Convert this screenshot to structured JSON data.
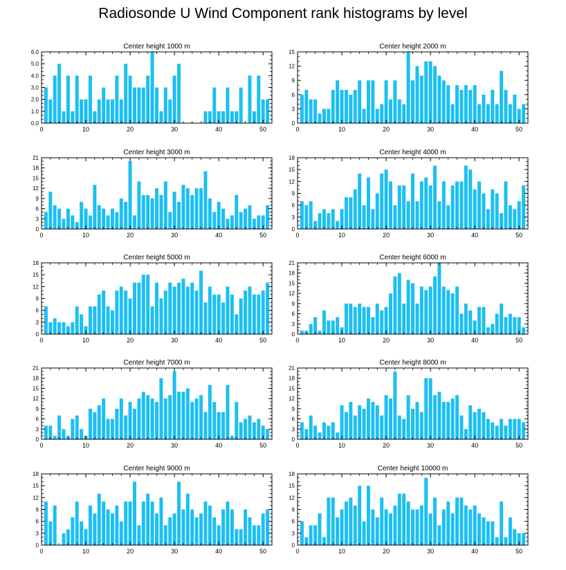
{
  "title": "Radiosonde U Wind Component rank histograms by level",
  "colors": {
    "bar": "#1cbff2",
    "axis": "#000000",
    "background": "#ffffff"
  },
  "chart_data": [
    {
      "type": "bar",
      "title": "Center height 1000 m",
      "xlim": [
        0,
        52
      ],
      "ylim": [
        0,
        6
      ],
      "yticks": [
        "0.0",
        "1.0",
        "2.0",
        "3.0",
        "4.0",
        "5.0",
        "6.0"
      ],
      "xticks": [
        0,
        10,
        20,
        30,
        40,
        50
      ],
      "x": [
        1,
        2,
        3,
        4,
        5,
        6,
        7,
        8,
        9,
        10,
        11,
        12,
        13,
        14,
        15,
        16,
        17,
        18,
        19,
        20,
        21,
        22,
        23,
        24,
        25,
        26,
        27,
        28,
        29,
        30,
        31,
        32,
        33,
        34,
        35,
        36,
        37,
        38,
        39,
        40,
        41,
        42,
        43,
        44,
        45,
        46,
        47,
        48,
        49,
        50,
        51
      ],
      "values": [
        3,
        2,
        4,
        5,
        1,
        4,
        1,
        4,
        2,
        2,
        4,
        1,
        2,
        3,
        2,
        2,
        4,
        2,
        5,
        4,
        3,
        3,
        3,
        4,
        6,
        3,
        1,
        3,
        2,
        4,
        5,
        0,
        0,
        0,
        0,
        0,
        1,
        1,
        3,
        1,
        1,
        3,
        1,
        1,
        3,
        0,
        4,
        1,
        4,
        2,
        2
      ]
    },
    {
      "type": "bar",
      "title": "Center height 2000 m",
      "xlim": [
        0,
        52
      ],
      "ylim": [
        0,
        15
      ],
      "yticks": [
        "0",
        "3",
        "6",
        "9",
        "12",
        "15"
      ],
      "xticks": [
        0,
        10,
        20,
        30,
        40,
        50
      ],
      "x": [
        1,
        2,
        3,
        4,
        5,
        6,
        7,
        8,
        9,
        10,
        11,
        12,
        13,
        14,
        15,
        16,
        17,
        18,
        19,
        20,
        21,
        22,
        23,
        24,
        25,
        26,
        27,
        28,
        29,
        30,
        31,
        32,
        33,
        34,
        35,
        36,
        37,
        38,
        39,
        40,
        41,
        42,
        43,
        44,
        45,
        46,
        47,
        48,
        49,
        50,
        51
      ],
      "values": [
        6,
        7,
        5,
        5,
        2,
        3,
        3,
        7,
        9,
        7,
        7,
        6,
        7,
        9,
        3,
        9,
        9,
        3,
        4,
        9,
        5,
        9,
        5,
        4,
        15,
        9,
        12,
        10,
        13,
        13,
        12,
        10,
        9,
        8,
        4,
        8,
        7,
        8,
        7,
        8,
        4,
        6,
        4,
        7,
        4,
        11,
        7,
        4,
        6,
        3,
        4
      ]
    },
    {
      "type": "bar",
      "title": "Center height 3000 m",
      "xlim": [
        0,
        52
      ],
      "ylim": [
        0,
        21
      ],
      "yticks": [
        "0",
        "3",
        "6",
        "9",
        "12",
        "15",
        "18",
        "21"
      ],
      "xticks": [
        0,
        10,
        20,
        30,
        40,
        50
      ],
      "x": [
        1,
        2,
        3,
        4,
        5,
        6,
        7,
        8,
        9,
        10,
        11,
        12,
        13,
        14,
        15,
        16,
        17,
        18,
        19,
        20,
        21,
        22,
        23,
        24,
        25,
        26,
        27,
        28,
        29,
        30,
        31,
        32,
        33,
        34,
        35,
        36,
        37,
        38,
        39,
        40,
        41,
        42,
        43,
        44,
        45,
        46,
        47,
        48,
        49,
        50,
        51
      ],
      "values": [
        5,
        11,
        7,
        6,
        3,
        6,
        4,
        2,
        8,
        6,
        4,
        13,
        7,
        6,
        4,
        6,
        5,
        9,
        8,
        20,
        4,
        14,
        10,
        10,
        9,
        12,
        10,
        14,
        5,
        11,
        8,
        13,
        12,
        10,
        12,
        12,
        17,
        9,
        5,
        8,
        6,
        3,
        4,
        10,
        5,
        6,
        7,
        3,
        4,
        4,
        7
      ]
    },
    {
      "type": "bar",
      "title": "Center height 4000 m",
      "xlim": [
        0,
        52
      ],
      "ylim": [
        0,
        18
      ],
      "yticks": [
        "0",
        "3",
        "6",
        "9",
        "12",
        "15",
        "18"
      ],
      "xticks": [
        0,
        10,
        20,
        30,
        40,
        50
      ],
      "x": [
        1,
        2,
        3,
        4,
        5,
        6,
        7,
        8,
        9,
        10,
        11,
        12,
        13,
        14,
        15,
        16,
        17,
        18,
        19,
        20,
        21,
        22,
        23,
        24,
        25,
        26,
        27,
        28,
        29,
        30,
        31,
        32,
        33,
        34,
        35,
        36,
        37,
        38,
        39,
        40,
        41,
        42,
        43,
        44,
        45,
        46,
        47,
        48,
        49,
        50,
        51
      ],
      "values": [
        7,
        6,
        7,
        2,
        4,
        5,
        4,
        5,
        2,
        5,
        8,
        8,
        10,
        14,
        6,
        13,
        5,
        9,
        14,
        15,
        12,
        6,
        11,
        11,
        7,
        14,
        7,
        12,
        13,
        11,
        16,
        7,
        12,
        6,
        11,
        12,
        12,
        16,
        15,
        10,
        12,
        9,
        5,
        10,
        9,
        4,
        12,
        6,
        5,
        7,
        11
      ]
    },
    {
      "type": "bar",
      "title": "Center height 5000 m",
      "xlim": [
        0,
        52
      ],
      "ylim": [
        0,
        18
      ],
      "yticks": [
        "0",
        "3",
        "6",
        "9",
        "12",
        "15",
        "18"
      ],
      "xticks": [
        0,
        10,
        20,
        30,
        40,
        50
      ],
      "x": [
        1,
        2,
        3,
        4,
        5,
        6,
        7,
        8,
        9,
        10,
        11,
        12,
        13,
        14,
        15,
        16,
        17,
        18,
        19,
        20,
        21,
        22,
        23,
        24,
        25,
        26,
        27,
        28,
        29,
        30,
        31,
        32,
        33,
        34,
        35,
        36,
        37,
        38,
        39,
        40,
        41,
        42,
        43,
        44,
        45,
        46,
        47,
        48,
        49,
        50,
        51
      ],
      "values": [
        7,
        3,
        4,
        3,
        3,
        2,
        3,
        7,
        5,
        2,
        7,
        7,
        10,
        11,
        7,
        6,
        11,
        12,
        11,
        9,
        13,
        13,
        15,
        15,
        7,
        13,
        9,
        11,
        13,
        12,
        13,
        14,
        12,
        13,
        11,
        16,
        8,
        12,
        10,
        10,
        8,
        12,
        10,
        5,
        9,
        11,
        12,
        10,
        10,
        11,
        13
      ]
    },
    {
      "type": "bar",
      "title": "Center height 6000 m",
      "xlim": [
        0,
        52
      ],
      "ylim": [
        0,
        21
      ],
      "yticks": [
        "0",
        "3",
        "6",
        "9",
        "12",
        "15",
        "18",
        "21"
      ],
      "xticks": [
        0,
        10,
        20,
        30,
        40,
        50
      ],
      "x": [
        1,
        2,
        3,
        4,
        5,
        6,
        7,
        8,
        9,
        10,
        11,
        12,
        13,
        14,
        15,
        16,
        17,
        18,
        19,
        20,
        21,
        22,
        23,
        24,
        25,
        26,
        27,
        28,
        29,
        30,
        31,
        32,
        33,
        34,
        35,
        36,
        37,
        38,
        39,
        40,
        41,
        42,
        43,
        44,
        45,
        46,
        47,
        48,
        49,
        50,
        51
      ],
      "values": [
        1,
        1,
        3,
        5,
        1,
        7,
        4,
        4,
        5,
        2,
        9,
        9,
        8,
        9,
        8,
        8,
        5,
        9,
        7,
        8,
        12,
        17,
        18,
        9,
        16,
        15,
        9,
        14,
        13,
        14,
        17,
        21,
        14,
        13,
        12,
        14,
        6,
        9,
        7,
        4,
        8,
        8,
        2,
        3,
        6,
        9,
        5,
        6,
        5,
        5,
        2
      ]
    },
    {
      "type": "bar",
      "title": "Center height 7000 m",
      "xlim": [
        0,
        52
      ],
      "ylim": [
        0,
        21
      ],
      "yticks": [
        "0",
        "3",
        "6",
        "9",
        "12",
        "15",
        "18",
        "21"
      ],
      "xticks": [
        0,
        10,
        20,
        30,
        40,
        50
      ],
      "x": [
        1,
        2,
        3,
        4,
        5,
        6,
        7,
        8,
        9,
        10,
        11,
        12,
        13,
        14,
        15,
        16,
        17,
        18,
        19,
        20,
        21,
        22,
        23,
        24,
        25,
        26,
        27,
        28,
        29,
        30,
        31,
        32,
        33,
        34,
        35,
        36,
        37,
        38,
        39,
        40,
        41,
        42,
        43,
        44,
        45,
        46,
        47,
        48,
        49,
        50,
        51
      ],
      "values": [
        4,
        4,
        1,
        7,
        3,
        1,
        6,
        7,
        3,
        1,
        9,
        8,
        10,
        12,
        6,
        6,
        9,
        12,
        7,
        11,
        9,
        12,
        14,
        13,
        12,
        11,
        18,
        12,
        13,
        20,
        14,
        14,
        15,
        11,
        12,
        13,
        8,
        16,
        11,
        8,
        8,
        16,
        1,
        11,
        5,
        6,
        7,
        5,
        6,
        4,
        3
      ]
    },
    {
      "type": "bar",
      "title": "Center height 8000 m",
      "xlim": [
        0,
        52
      ],
      "ylim": [
        0,
        21
      ],
      "yticks": [
        "0",
        "3",
        "6",
        "9",
        "12",
        "15",
        "18",
        "21"
      ],
      "xticks": [
        0,
        10,
        20,
        30,
        40,
        50
      ],
      "x": [
        1,
        2,
        3,
        4,
        5,
        6,
        7,
        8,
        9,
        10,
        11,
        12,
        13,
        14,
        15,
        16,
        17,
        18,
        19,
        20,
        21,
        22,
        23,
        24,
        25,
        26,
        27,
        28,
        29,
        30,
        31,
        32,
        33,
        34,
        35,
        36,
        37,
        38,
        39,
        40,
        41,
        42,
        43,
        44,
        45,
        46,
        47,
        48,
        49,
        50,
        51
      ],
      "values": [
        5,
        3,
        7,
        4,
        2,
        5,
        4,
        5,
        2,
        10,
        8,
        11,
        7,
        10,
        9,
        12,
        11,
        10,
        7,
        13,
        12,
        20,
        7,
        6,
        13,
        9,
        11,
        8,
        18,
        18,
        13,
        14,
        11,
        11,
        12,
        13,
        7,
        3,
        10,
        8,
        9,
        8,
        6,
        5,
        4,
        6,
        4,
        6,
        6,
        6,
        5
      ]
    },
    {
      "type": "bar",
      "title": "Center height 9000 m",
      "xlim": [
        0,
        52
      ],
      "ylim": [
        0,
        18
      ],
      "yticks": [
        "0",
        "3",
        "6",
        "9",
        "12",
        "15",
        "18"
      ],
      "xticks": [
        0,
        10,
        20,
        30,
        40,
        50
      ],
      "x": [
        1,
        2,
        3,
        4,
        5,
        6,
        7,
        8,
        9,
        10,
        11,
        12,
        13,
        14,
        15,
        16,
        17,
        18,
        19,
        20,
        21,
        22,
        23,
        24,
        25,
        26,
        27,
        28,
        29,
        30,
        31,
        32,
        33,
        34,
        35,
        36,
        37,
        38,
        39,
        40,
        41,
        42,
        43,
        44,
        45,
        46,
        47,
        48,
        49,
        50,
        51
      ],
      "values": [
        11,
        6,
        10,
        0,
        3,
        4,
        7,
        11,
        6,
        4,
        10,
        8,
        13,
        11,
        9,
        8,
        10,
        6,
        11,
        11,
        16,
        5,
        11,
        13,
        11,
        8,
        12,
        5,
        7,
        8,
        16,
        9,
        13,
        9,
        7,
        8,
        11,
        10,
        7,
        5,
        9,
        11,
        9,
        4,
        4,
        9,
        7,
        5,
        5,
        8,
        9
      ]
    },
    {
      "type": "bar",
      "title": "Center height 10000 m",
      "xlim": [
        0,
        52
      ],
      "ylim": [
        0,
        18
      ],
      "yticks": [
        "0",
        "3",
        "6",
        "9",
        "12",
        "15",
        "18"
      ],
      "xticks": [
        0,
        10,
        20,
        30,
        40,
        50
      ],
      "x": [
        1,
        2,
        3,
        4,
        5,
        6,
        7,
        8,
        9,
        10,
        11,
        12,
        13,
        14,
        15,
        16,
        17,
        18,
        19,
        20,
        21,
        22,
        23,
        24,
        25,
        26,
        27,
        28,
        29,
        30,
        31,
        32,
        33,
        34,
        35,
        36,
        37,
        38,
        39,
        40,
        41,
        42,
        43,
        44,
        45,
        46,
        47,
        48,
        49,
        50,
        51
      ],
      "values": [
        6,
        2,
        5,
        5,
        8,
        2,
        12,
        12,
        7,
        9,
        11,
        12,
        10,
        15,
        6,
        15,
        9,
        7,
        12,
        9,
        8,
        10,
        13,
        13,
        11,
        9,
        9,
        10,
        17,
        8,
        12,
        5,
        9,
        11,
        8,
        12,
        12,
        10,
        9,
        10,
        8,
        7,
        6,
        6,
        2,
        11,
        2,
        7,
        4,
        3,
        3
      ]
    }
  ]
}
